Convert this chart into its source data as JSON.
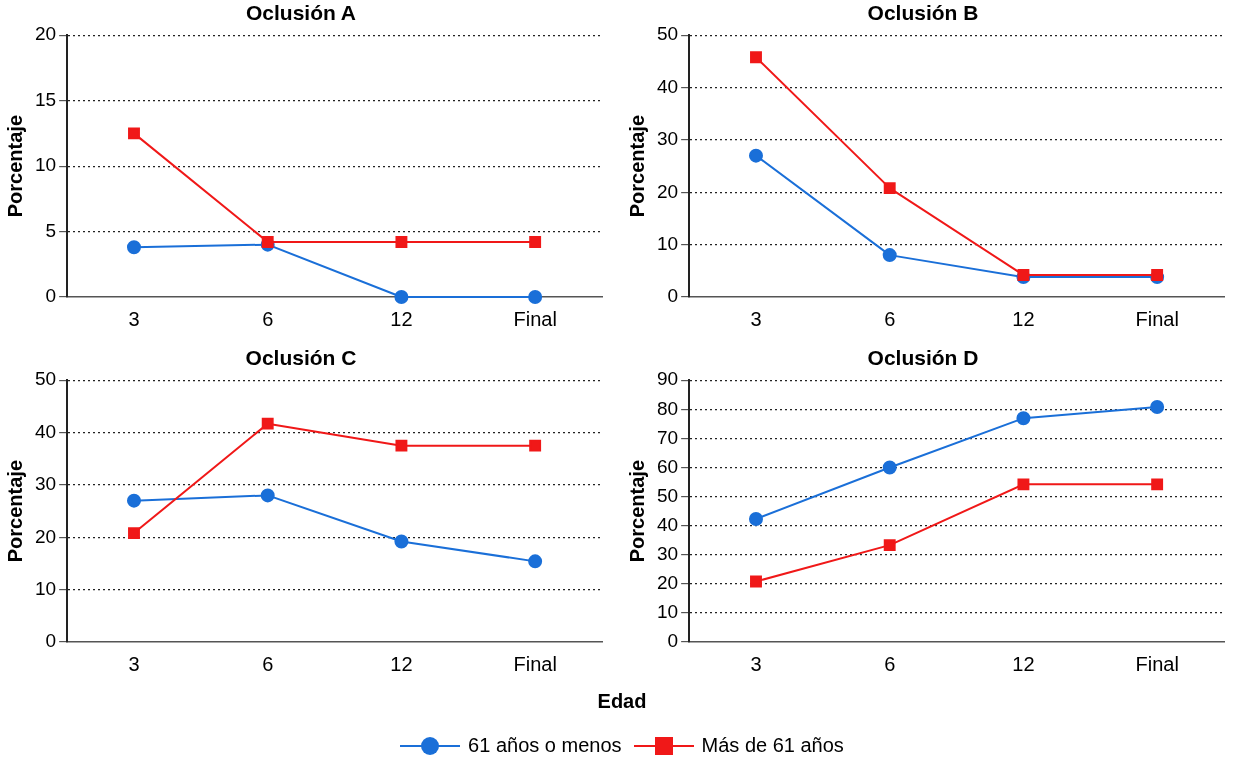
{
  "chart_data": [
    {
      "type": "line",
      "title": "Oclusión A",
      "ylabel": "Porcentaje",
      "categories": [
        "3",
        "6",
        "12",
        "Final"
      ],
      "ylim": [
        0,
        20
      ],
      "yticks": [
        0,
        5,
        10,
        15,
        20
      ],
      "grid": "y",
      "legend": false,
      "series": [
        {
          "color": "#1a6fd8",
          "marker": "circle",
          "values": [
            3.8,
            4.0,
            0,
            0
          ]
        },
        {
          "color": "#f01818",
          "marker": "square",
          "values": [
            12.5,
            4.2,
            4.2,
            4.2
          ]
        }
      ]
    },
    {
      "type": "line",
      "title": "Oclusión B",
      "ylabel": "Porcentaje",
      "categories": [
        "3",
        "6",
        "12",
        "Final"
      ],
      "ylim": [
        0,
        50
      ],
      "yticks": [
        0,
        10,
        20,
        30,
        40,
        50
      ],
      "grid": "y",
      "legend": false,
      "series": [
        {
          "color": "#1a6fd8",
          "marker": "circle",
          "values": [
            27,
            8,
            3.8,
            3.8
          ]
        },
        {
          "color": "#f01818",
          "marker": "square",
          "values": [
            45.8,
            20.8,
            4.2,
            4.2
          ]
        }
      ]
    },
    {
      "type": "line",
      "title": "Oclusión C",
      "ylabel": "Porcentaje",
      "categories": [
        "3",
        "6",
        "12",
        "Final"
      ],
      "ylim": [
        0,
        50
      ],
      "yticks": [
        0,
        10,
        20,
        30,
        40,
        50
      ],
      "grid": "y",
      "legend": false,
      "series": [
        {
          "color": "#1a6fd8",
          "marker": "circle",
          "values": [
            27,
            28,
            19.2,
            15.4
          ]
        },
        {
          "color": "#f01818",
          "marker": "square",
          "values": [
            20.8,
            41.7,
            37.5,
            37.5
          ]
        }
      ]
    },
    {
      "type": "line",
      "title": "Oclusión D",
      "ylabel": "Porcentaje",
      "xlabel": "Edad",
      "categories": [
        "3",
        "6",
        "12",
        "Final"
      ],
      "ylim": [
        0,
        90
      ],
      "yticks": [
        0,
        10,
        20,
        30,
        40,
        50,
        60,
        70,
        80,
        90
      ],
      "grid": "y",
      "legend": "bottom",
      "series": [
        {
          "name": "61 años o menos",
          "color": "#1a6fd8",
          "marker": "circle",
          "values": [
            42.3,
            60,
            76.9,
            80.8
          ]
        },
        {
          "name": "Más de 61 años",
          "color": "#f01818",
          "marker": "square",
          "values": [
            20.8,
            33.3,
            54.2,
            54.2
          ]
        }
      ]
    }
  ]
}
